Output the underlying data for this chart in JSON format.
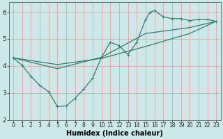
{
  "xlabel": "Humidex (Indice chaleur)",
  "bg_color": "#cde8e8",
  "grid_color": "#e8a0a0",
  "line_color": "#2e7d6e",
  "xlim": [
    -0.5,
    23.5
  ],
  "ylim": [
    2.0,
    6.35
  ],
  "yticks": [
    2,
    3,
    4,
    5,
    6
  ],
  "xticks": [
    0,
    1,
    2,
    3,
    4,
    5,
    6,
    7,
    8,
    9,
    10,
    11,
    12,
    13,
    14,
    15,
    16,
    17,
    18,
    19,
    20,
    21,
    22,
    23
  ],
  "series_main": [
    [
      0,
      4.3
    ],
    [
      1,
      4.02
    ],
    [
      2,
      3.62
    ],
    [
      3,
      3.28
    ],
    [
      4,
      3.05
    ],
    [
      5,
      2.5
    ],
    [
      6,
      2.52
    ],
    [
      7,
      2.8
    ],
    [
      8,
      3.15
    ],
    [
      9,
      3.55
    ],
    [
      10,
      4.32
    ],
    [
      11,
      4.88
    ],
    [
      12,
      4.75
    ],
    [
      13,
      4.42
    ],
    [
      14,
      4.88
    ],
    [
      15,
      5.72
    ],
    [
      15.5,
      5.98
    ],
    [
      16,
      6.05
    ],
    [
      17,
      5.82
    ],
    [
      18,
      5.75
    ],
    [
      19,
      5.75
    ],
    [
      20,
      5.68
    ],
    [
      21,
      5.72
    ],
    [
      22,
      5.72
    ],
    [
      23,
      5.65
    ]
  ],
  "series_low": [
    [
      0,
      4.3
    ],
    [
      5,
      4.05
    ],
    [
      10,
      4.28
    ],
    [
      15,
      4.72
    ],
    [
      20,
      5.2
    ],
    [
      23,
      5.65
    ]
  ],
  "series_mid": [
    [
      0,
      4.3
    ],
    [
      5,
      3.9
    ],
    [
      10,
      4.32
    ],
    [
      15,
      5.2
    ],
    [
      20,
      5.42
    ],
    [
      23,
      5.65
    ]
  ]
}
